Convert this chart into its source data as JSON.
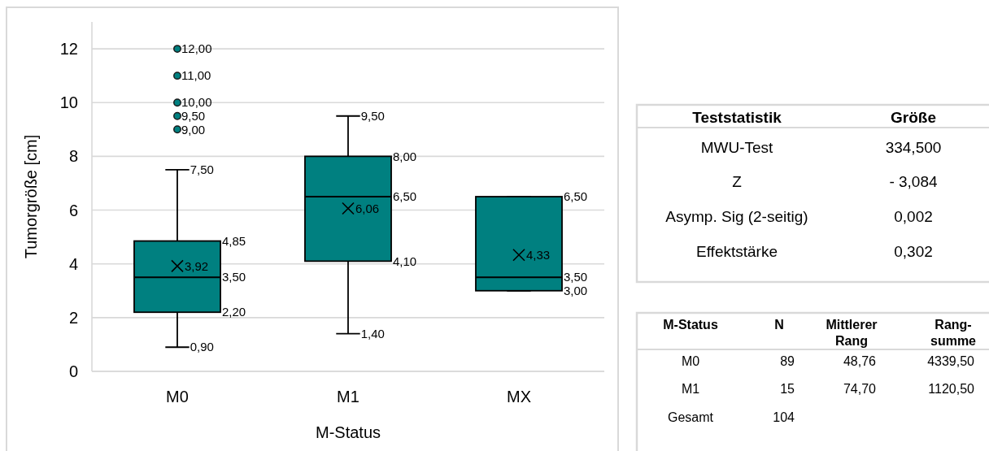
{
  "chart_data": [
    {
      "type": "box",
      "xlabel": "M-Status",
      "ylabel": "Tumorgröße [cm]",
      "categories": [
        "M0",
        "M1",
        "MX"
      ],
      "color": "#008080",
      "ylim": [
        0,
        13
      ],
      "yticks": [
        0,
        2,
        4,
        6,
        8,
        10,
        12
      ],
      "grid": "y",
      "boxes": [
        {
          "low": 0.9,
          "q1": 2.2,
          "median": 3.5,
          "q3": 4.85,
          "high": 7.5,
          "mean": 3.92,
          "outliers": [
            9,
            9.5,
            10,
            11,
            12
          ]
        },
        {
          "low": 1.4,
          "q1": 4.1,
          "median": 6.5,
          "q3": 8,
          "high": 9.5,
          "mean": 6.06
        },
        {
          "low": 3,
          "q1": 3,
          "median": 3.5,
          "q3": 6.5,
          "high": 6.5,
          "mean": 4.33
        }
      ],
      "annotations": [
        "9,00",
        "9,50",
        "10,00",
        "11,00",
        "12,00",
        "7,50",
        "4,85",
        "3,92",
        "3,50",
        "2,20",
        "0,90",
        "9,50",
        "8,00",
        "6,06",
        "6,50",
        "4,10",
        "1,40",
        "6,50",
        "4,33",
        "3,50",
        "3,00"
      ]
    },
    {
      "type": "other",
      "categories": [
        "Teststatistik",
        "Größe"
      ],
      "annotations": [
        "MWU-Test",
        "334,500",
        "Z",
        "- 3,084",
        "Asymp. Sig (2-seitig)",
        "0,002",
        "Effektstärke",
        "0,302"
      ]
    },
    {
      "type": "other",
      "categories": [
        "M-Status",
        "N",
        "Mittlerer Rang",
        "Rang-summe"
      ],
      "annotations": [
        "M0",
        "89",
        "48,76",
        "4339,50",
        "M1",
        "15",
        "74,70",
        "1120,50",
        "Gesamt",
        "104"
      ]
    }
  ]
}
